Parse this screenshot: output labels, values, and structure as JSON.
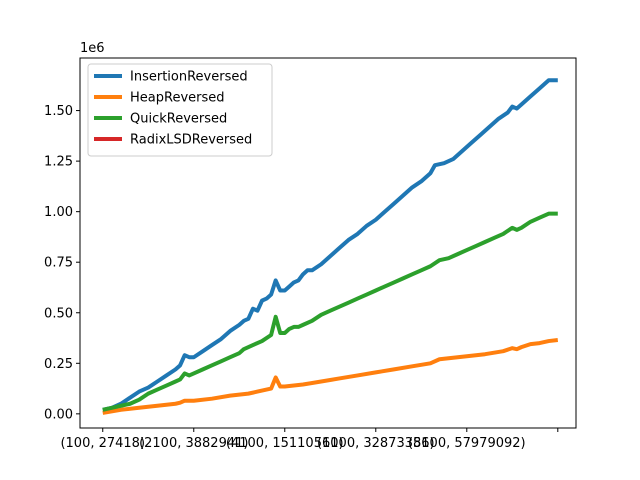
{
  "chart_data": {
    "type": "line",
    "title": "",
    "xlabel": "",
    "ylabel": "",
    "y_offset_label": "1e6",
    "x_tick_labels": [
      "(100, 27418)",
      "(2100, 3882941)",
      "(4100, 15110510)",
      "(6100, 32873356)",
      "(8100, 57979092)",
      ""
    ],
    "y_tick_labels": [
      "0.00",
      "0.25",
      "0.50",
      "0.75",
      "1.00",
      "1.25",
      "1.50"
    ],
    "y_ticks": [
      0,
      0.25,
      0.5,
      0.75,
      1.0,
      1.25,
      1.5
    ],
    "x_ticks": [
      0,
      20,
      40,
      60,
      80,
      100
    ],
    "xlim": [
      -5,
      104
    ],
    "ylim": [
      -0.07,
      1.76
    ],
    "legend_position": "top-left",
    "grid": false,
    "series": [
      {
        "name": "InsertionReversed",
        "color": "#1f77b4",
        "points": [
          [
            0,
            0.02
          ],
          [
            2,
            0.03
          ],
          [
            4,
            0.05
          ],
          [
            6,
            0.08
          ],
          [
            8,
            0.11
          ],
          [
            10,
            0.13
          ],
          [
            12,
            0.16
          ],
          [
            14,
            0.19
          ],
          [
            16,
            0.22
          ],
          [
            17,
            0.24
          ],
          [
            18,
            0.29
          ],
          [
            19,
            0.28
          ],
          [
            20,
            0.28
          ],
          [
            22,
            0.31
          ],
          [
            24,
            0.34
          ],
          [
            26,
            0.37
          ],
          [
            28,
            0.41
          ],
          [
            30,
            0.44
          ],
          [
            31,
            0.46
          ],
          [
            32,
            0.47
          ],
          [
            33,
            0.52
          ],
          [
            34,
            0.51
          ],
          [
            35,
            0.56
          ],
          [
            36,
            0.57
          ],
          [
            37,
            0.59
          ],
          [
            38,
            0.66
          ],
          [
            39,
            0.61
          ],
          [
            40,
            0.61
          ],
          [
            41,
            0.63
          ],
          [
            42,
            0.65
          ],
          [
            43,
            0.66
          ],
          [
            44,
            0.69
          ],
          [
            45,
            0.71
          ],
          [
            46,
            0.71
          ],
          [
            48,
            0.74
          ],
          [
            50,
            0.78
          ],
          [
            52,
            0.82
          ],
          [
            54,
            0.86
          ],
          [
            56,
            0.89
          ],
          [
            58,
            0.93
          ],
          [
            60,
            0.96
          ],
          [
            62,
            1.0
          ],
          [
            64,
            1.04
          ],
          [
            66,
            1.08
          ],
          [
            68,
            1.12
          ],
          [
            70,
            1.15
          ],
          [
            72,
            1.19
          ],
          [
            73,
            1.23
          ],
          [
            75,
            1.24
          ],
          [
            77,
            1.26
          ],
          [
            79,
            1.3
          ],
          [
            81,
            1.34
          ],
          [
            83,
            1.38
          ],
          [
            85,
            1.42
          ],
          [
            87,
            1.46
          ],
          [
            89,
            1.49
          ],
          [
            90,
            1.52
          ],
          [
            91,
            1.51
          ],
          [
            92,
            1.53
          ],
          [
            94,
            1.57
          ],
          [
            96,
            1.61
          ],
          [
            98,
            1.65
          ],
          [
            100,
            1.65
          ]
        ]
      },
      {
        "name": "HeapReversed",
        "color": "#ff7f0e",
        "points": [
          [
            0,
            0.005
          ],
          [
            4,
            0.02
          ],
          [
            8,
            0.03
          ],
          [
            12,
            0.04
          ],
          [
            16,
            0.05
          ],
          [
            17,
            0.055
          ],
          [
            18,
            0.065
          ],
          [
            20,
            0.065
          ],
          [
            24,
            0.075
          ],
          [
            28,
            0.09
          ],
          [
            32,
            0.1
          ],
          [
            34,
            0.11
          ],
          [
            36,
            0.12
          ],
          [
            37,
            0.125
          ],
          [
            38,
            0.18
          ],
          [
            39,
            0.135
          ],
          [
            40,
            0.135
          ],
          [
            44,
            0.145
          ],
          [
            48,
            0.16
          ],
          [
            52,
            0.175
          ],
          [
            56,
            0.19
          ],
          [
            60,
            0.205
          ],
          [
            64,
            0.22
          ],
          [
            68,
            0.235
          ],
          [
            72,
            0.25
          ],
          [
            74,
            0.27
          ],
          [
            76,
            0.275
          ],
          [
            80,
            0.285
          ],
          [
            84,
            0.295
          ],
          [
            88,
            0.31
          ],
          [
            90,
            0.325
          ],
          [
            91,
            0.32
          ],
          [
            92,
            0.33
          ],
          [
            94,
            0.345
          ],
          [
            96,
            0.35
          ],
          [
            98,
            0.36
          ],
          [
            100,
            0.365
          ]
        ]
      },
      {
        "name": "QuickReversed",
        "color": "#2ca02c",
        "points": [
          [
            0,
            0.02
          ],
          [
            2,
            0.03
          ],
          [
            4,
            0.04
          ],
          [
            6,
            0.05
          ],
          [
            8,
            0.07
          ],
          [
            10,
            0.1
          ],
          [
            12,
            0.12
          ],
          [
            14,
            0.14
          ],
          [
            16,
            0.16
          ],
          [
            17,
            0.17
          ],
          [
            18,
            0.2
          ],
          [
            19,
            0.19
          ],
          [
            20,
            0.2
          ],
          [
            22,
            0.22
          ],
          [
            24,
            0.24
          ],
          [
            26,
            0.26
          ],
          [
            28,
            0.28
          ],
          [
            30,
            0.3
          ],
          [
            31,
            0.32
          ],
          [
            33,
            0.34
          ],
          [
            35,
            0.36
          ],
          [
            37,
            0.39
          ],
          [
            38,
            0.48
          ],
          [
            39,
            0.4
          ],
          [
            40,
            0.4
          ],
          [
            41,
            0.42
          ],
          [
            42,
            0.43
          ],
          [
            43,
            0.43
          ],
          [
            44,
            0.44
          ],
          [
            46,
            0.46
          ],
          [
            48,
            0.49
          ],
          [
            50,
            0.51
          ],
          [
            52,
            0.53
          ],
          [
            54,
            0.55
          ],
          [
            56,
            0.57
          ],
          [
            58,
            0.59
          ],
          [
            60,
            0.61
          ],
          [
            62,
            0.63
          ],
          [
            64,
            0.65
          ],
          [
            66,
            0.67
          ],
          [
            68,
            0.69
          ],
          [
            70,
            0.71
          ],
          [
            72,
            0.73
          ],
          [
            74,
            0.76
          ],
          [
            76,
            0.77
          ],
          [
            78,
            0.79
          ],
          [
            80,
            0.81
          ],
          [
            82,
            0.83
          ],
          [
            84,
            0.85
          ],
          [
            86,
            0.87
          ],
          [
            88,
            0.89
          ],
          [
            90,
            0.92
          ],
          [
            91,
            0.91
          ],
          [
            92,
            0.92
          ],
          [
            94,
            0.95
          ],
          [
            96,
            0.97
          ],
          [
            98,
            0.99
          ],
          [
            100,
            0.99
          ]
        ]
      },
      {
        "name": "RadixLSDReversed",
        "color": "#d62728",
        "points": []
      }
    ]
  }
}
